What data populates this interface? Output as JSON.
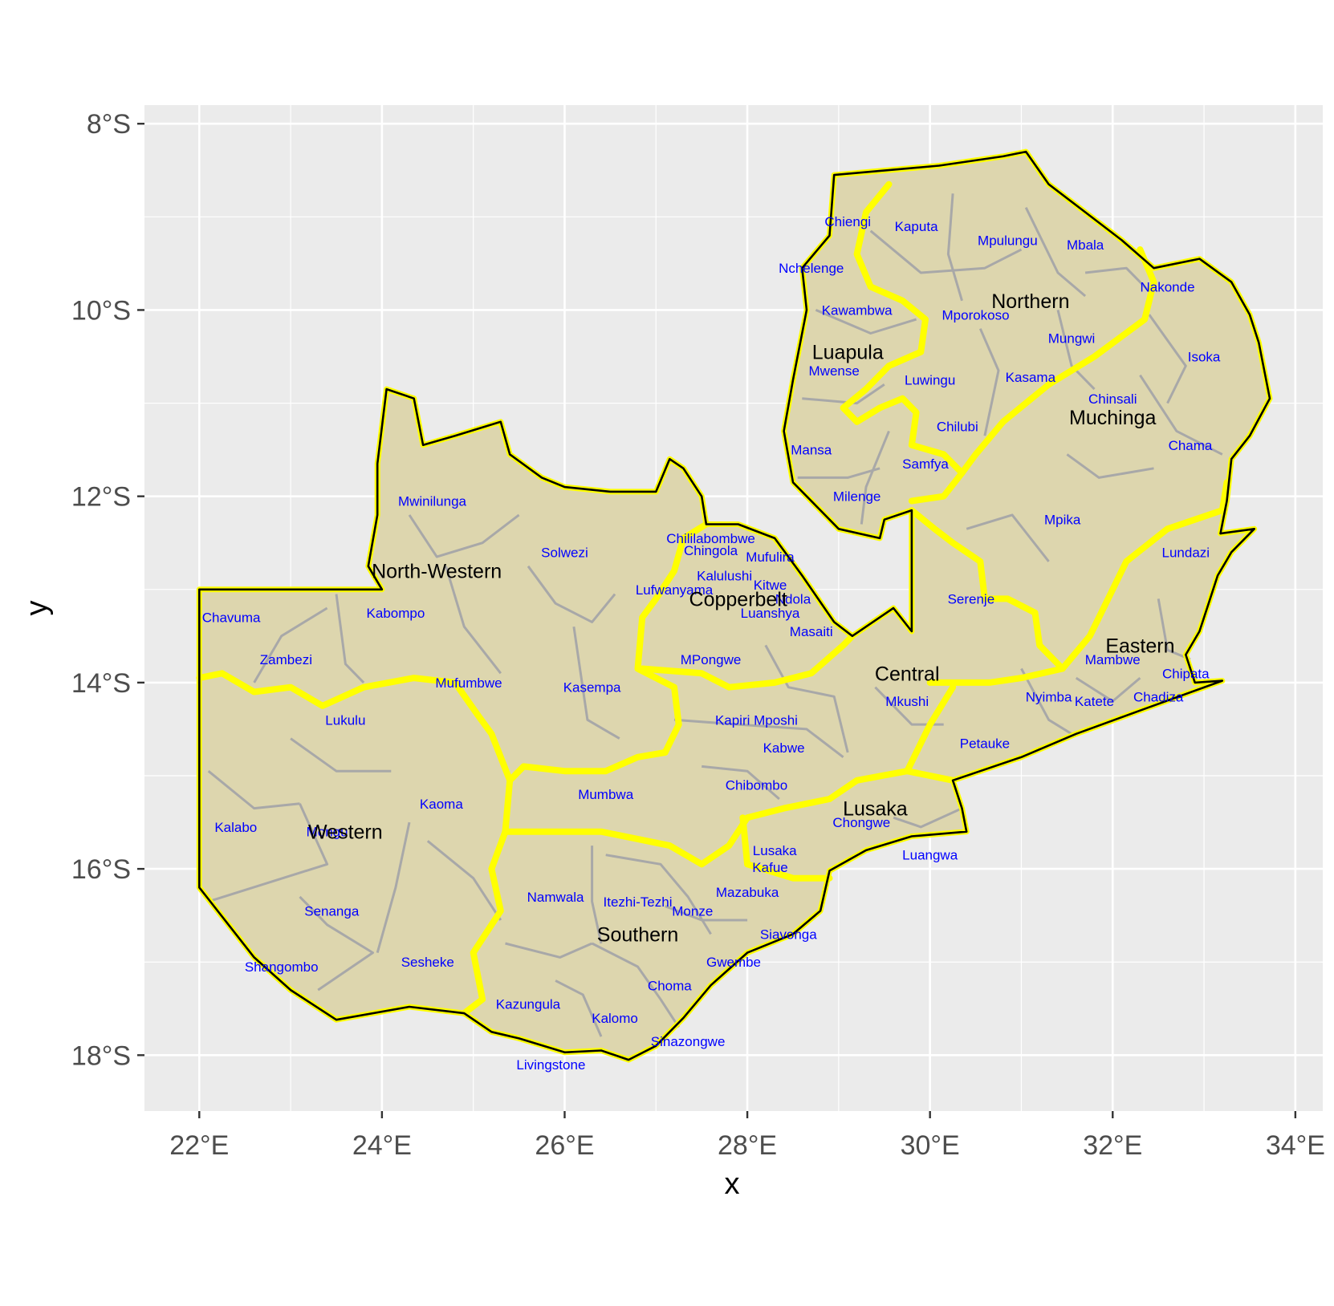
{
  "map": {
    "xlabel": "x",
    "ylabel": "y",
    "lon_range": [
      21.4,
      34.3
    ],
    "lat_range": [
      -18.6,
      -7.8
    ],
    "x_ticks": [
      {
        "value": 22,
        "label": "22°E"
      },
      {
        "value": 24,
        "label": "24°E"
      },
      {
        "value": 26,
        "label": "26°E"
      },
      {
        "value": 28,
        "label": "28°E"
      },
      {
        "value": 30,
        "label": "30°E"
      },
      {
        "value": 32,
        "label": "32°E"
      },
      {
        "value": 34,
        "label": "34°E"
      }
    ],
    "y_ticks": [
      {
        "value": -8,
        "label": "8°S"
      },
      {
        "value": -10,
        "label": "10°S"
      },
      {
        "value": -12,
        "label": "12°S"
      },
      {
        "value": -14,
        "label": "14°S"
      },
      {
        "value": -16,
        "label": "16°S"
      },
      {
        "value": -18,
        "label": "18°S"
      }
    ],
    "colors": {
      "panel": "#ebebeb",
      "grid": "#ffffff",
      "land_fill": "#ddd6ae",
      "district_border": "#a8a8a8",
      "province_border": "#ffff00",
      "country_outline": "#000000",
      "province_label": "#000000",
      "district_label": "#0000ff"
    },
    "provinces": [
      {
        "name": "Luapula",
        "lon": 29.1,
        "lat": -10.45
      },
      {
        "name": "Northern",
        "lon": 31.1,
        "lat": -9.9
      },
      {
        "name": "Muchinga",
        "lon": 32.0,
        "lat": -11.15
      },
      {
        "name": "North-Western",
        "lon": 24.6,
        "lat": -12.8
      },
      {
        "name": "Copperbelt",
        "lon": 27.9,
        "lat": -13.1
      },
      {
        "name": "Eastern",
        "lon": 32.3,
        "lat": -13.6
      },
      {
        "name": "Central",
        "lon": 29.75,
        "lat": -13.9
      },
      {
        "name": "Lusaka",
        "lon": 29.4,
        "lat": -15.35
      },
      {
        "name": "Western",
        "lon": 23.6,
        "lat": -15.6
      },
      {
        "name": "Southern",
        "lon": 26.8,
        "lat": -16.7
      }
    ],
    "districts": [
      {
        "name": "Chiengi",
        "lon": 29.1,
        "lat": -9.05
      },
      {
        "name": "Kaputa",
        "lon": 29.85,
        "lat": -9.1
      },
      {
        "name": "Mpulungu",
        "lon": 30.85,
        "lat": -9.25
      },
      {
        "name": "Mbala",
        "lon": 31.7,
        "lat": -9.3
      },
      {
        "name": "Nchelenge",
        "lon": 28.7,
        "lat": -9.55
      },
      {
        "name": "Nakonde",
        "lon": 32.6,
        "lat": -9.75
      },
      {
        "name": "Kawambwa",
        "lon": 29.2,
        "lat": -10.0
      },
      {
        "name": "Mporokoso",
        "lon": 30.5,
        "lat": -10.05
      },
      {
        "name": "Mungwi",
        "lon": 31.55,
        "lat": -10.3
      },
      {
        "name": "Isoka",
        "lon": 33.0,
        "lat": -10.5
      },
      {
        "name": "Mwense",
        "lon": 28.95,
        "lat": -10.65
      },
      {
        "name": "Luwingu",
        "lon": 30.0,
        "lat": -10.75
      },
      {
        "name": "Kasama",
        "lon": 31.1,
        "lat": -10.72
      },
      {
        "name": "Chinsali",
        "lon": 32.0,
        "lat": -10.95
      },
      {
        "name": "Chilubi",
        "lon": 30.3,
        "lat": -11.25
      },
      {
        "name": "Chama",
        "lon": 32.85,
        "lat": -11.45
      },
      {
        "name": "Mansa",
        "lon": 28.7,
        "lat": -11.5
      },
      {
        "name": "Samfya",
        "lon": 29.95,
        "lat": -11.65
      },
      {
        "name": "Milenge",
        "lon": 29.2,
        "lat": -12.0
      },
      {
        "name": "Mwinilunga",
        "lon": 24.55,
        "lat": -12.05
      },
      {
        "name": "Mpika",
        "lon": 31.45,
        "lat": -12.25
      },
      {
        "name": "Chililabombwe",
        "lon": 27.6,
        "lat": -12.45
      },
      {
        "name": "Solwezi",
        "lon": 26.0,
        "lat": -12.6
      },
      {
        "name": "Chingola",
        "lon": 27.6,
        "lat": -12.58
      },
      {
        "name": "Mufulira",
        "lon": 28.25,
        "lat": -12.65
      },
      {
        "name": "Lundazi",
        "lon": 32.8,
        "lat": -12.6
      },
      {
        "name": "Kalulushi",
        "lon": 27.75,
        "lat": -12.85
      },
      {
        "name": "Kitwe",
        "lon": 28.25,
        "lat": -12.95
      },
      {
        "name": "Lufwanyama",
        "lon": 27.2,
        "lat": -13.0
      },
      {
        "name": "Ndola",
        "lon": 28.5,
        "lat": -13.1
      },
      {
        "name": "Luanshya",
        "lon": 28.25,
        "lat": -13.25
      },
      {
        "name": "Serenje",
        "lon": 30.45,
        "lat": -13.1
      },
      {
        "name": "Chavuma",
        "lon": 22.35,
        "lat": -13.3
      },
      {
        "name": "Kabompo",
        "lon": 24.15,
        "lat": -13.25
      },
      {
        "name": "Masaiti",
        "lon": 28.7,
        "lat": -13.45
      },
      {
        "name": "Mambwe",
        "lon": 32.0,
        "lat": -13.75
      },
      {
        "name": "MPongwe",
        "lon": 27.6,
        "lat": -13.75
      },
      {
        "name": "Chipata",
        "lon": 32.8,
        "lat": -13.9
      },
      {
        "name": "Zambezi",
        "lon": 22.95,
        "lat": -13.75
      },
      {
        "name": "Mufumbwe",
        "lon": 24.95,
        "lat": -14.0
      },
      {
        "name": "Kasempa",
        "lon": 26.3,
        "lat": -14.05
      },
      {
        "name": "Mkushi",
        "lon": 29.75,
        "lat": -14.2
      },
      {
        "name": "Nyimba",
        "lon": 31.3,
        "lat": -14.15
      },
      {
        "name": "Katete",
        "lon": 31.8,
        "lat": -14.2
      },
      {
        "name": "Chadiza",
        "lon": 32.5,
        "lat": -14.15
      },
      {
        "name": "Lukulu",
        "lon": 23.6,
        "lat": -14.4
      },
      {
        "name": "Kapiri Mposhi",
        "lon": 28.1,
        "lat": -14.4
      },
      {
        "name": "Petauke",
        "lon": 30.6,
        "lat": -14.65
      },
      {
        "name": "Kabwe",
        "lon": 28.4,
        "lat": -14.7
      },
      {
        "name": "Chibombo",
        "lon": 28.1,
        "lat": -15.1
      },
      {
        "name": "Mumbwa",
        "lon": 26.45,
        "lat": -15.2
      },
      {
        "name": "Kaoma",
        "lon": 24.65,
        "lat": -15.3
      },
      {
        "name": "Chongwe",
        "lon": 29.25,
        "lat": -15.5
      },
      {
        "name": "Kalabo",
        "lon": 22.4,
        "lat": -15.55
      },
      {
        "name": "Mongu",
        "lon": 23.4,
        "lat": -15.6
      },
      {
        "name": "Lusaka",
        "lon": 28.3,
        "lat": -15.8
      },
      {
        "name": "Luangwa",
        "lon": 30.0,
        "lat": -15.85
      },
      {
        "name": "Kafue",
        "lon": 28.25,
        "lat": -15.98
      },
      {
        "name": "Mazabuka",
        "lon": 28.0,
        "lat": -16.25
      },
      {
        "name": "Namwala",
        "lon": 25.9,
        "lat": -16.3
      },
      {
        "name": "Itezhi-Tezhi",
        "lon": 26.8,
        "lat": -16.35
      },
      {
        "name": "Monze",
        "lon": 27.4,
        "lat": -16.45
      },
      {
        "name": "Senanga",
        "lon": 23.45,
        "lat": -16.45
      },
      {
        "name": "Siavonga",
        "lon": 28.45,
        "lat": -16.7
      },
      {
        "name": "Sesheke",
        "lon": 24.5,
        "lat": -17.0
      },
      {
        "name": "Shangombo",
        "lon": 22.9,
        "lat": -17.05
      },
      {
        "name": "Gwembe",
        "lon": 27.85,
        "lat": -17.0
      },
      {
        "name": "Choma",
        "lon": 27.15,
        "lat": -17.25
      },
      {
        "name": "Kazungula",
        "lon": 25.6,
        "lat": -17.45
      },
      {
        "name": "Kalomo",
        "lon": 26.55,
        "lat": -17.6
      },
      {
        "name": "Sinazongwe",
        "lon": 27.35,
        "lat": -17.85
      },
      {
        "name": "Livingstone",
        "lon": 25.85,
        "lat": -18.1
      }
    ]
  }
}
